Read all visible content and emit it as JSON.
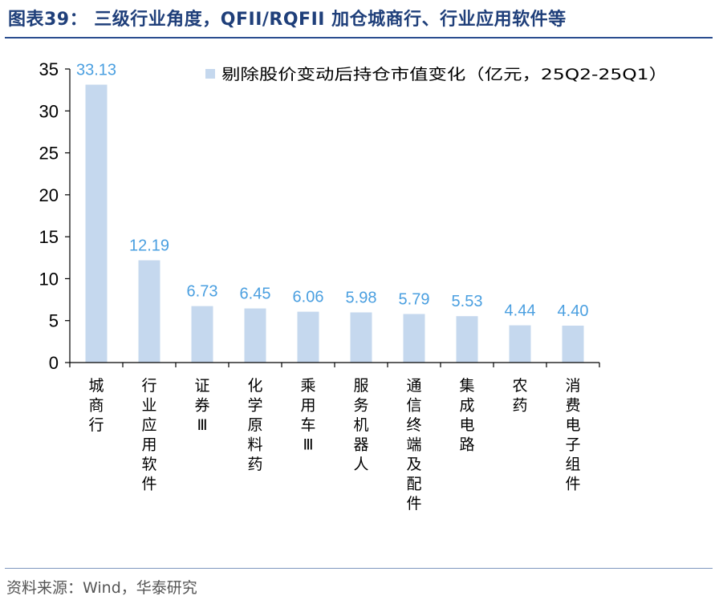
{
  "header": {
    "title": "图表39： 三级行业角度，QFII/RQFII 加仓城商行、行业应用软件等"
  },
  "footer": {
    "source": "资料来源：Wind，华泰研究"
  },
  "colors": {
    "bar": "#c5d8ee",
    "data_label": "#4a9fe0",
    "title": "#1f3f7a",
    "rule": "#2a4d8f"
  },
  "chart_data": {
    "type": "bar",
    "title": "",
    "xlabel": "",
    "ylabel": "",
    "categories": [
      "城商行",
      "行业应用软件",
      "证券Ⅲ",
      "化学原料药",
      "乘用车Ⅲ",
      "服务机器人",
      "通信终端及配件",
      "集成电路",
      "农药",
      "消费电子组件"
    ],
    "series": [
      {
        "name": "剔除股价变动后持仓市值变化（亿元，25Q2-25Q1）",
        "values": [
          33.13,
          12.19,
          6.73,
          6.45,
          6.06,
          5.98,
          5.79,
          5.53,
          4.44,
          4.4
        ],
        "labels": [
          "33.13",
          "12.19",
          "6.73",
          "6.45",
          "6.06",
          "5.98",
          "5.79",
          "5.53",
          "4.44",
          "4.40"
        ]
      }
    ],
    "ylim": [
      0,
      35
    ],
    "yticks": [
      0,
      5,
      10,
      15,
      20,
      25,
      30,
      35
    ],
    "grid": false,
    "legend_position": "top-right"
  }
}
